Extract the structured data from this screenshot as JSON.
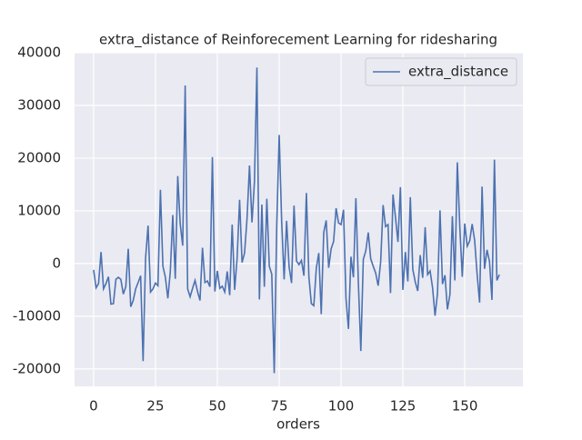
{
  "chart_data": {
    "type": "line",
    "title": "extra_distance of Reinforecement Learning for ridesharing",
    "xlabel": "orders",
    "x": [
      0,
      1,
      2,
      3,
      4,
      5,
      6,
      7,
      8,
      9,
      10,
      11,
      12,
      13,
      14,
      15,
      16,
      17,
      18,
      19,
      20,
      21,
      22,
      23,
      24,
      25,
      26,
      27,
      28,
      29,
      30,
      31,
      32,
      33,
      34,
      35,
      36,
      37,
      38,
      39,
      40,
      41,
      42,
      43,
      44,
      45,
      46,
      47,
      48,
      49,
      50,
      51,
      52,
      53,
      54,
      55,
      56,
      57,
      58,
      59,
      60,
      61,
      62,
      63,
      64,
      65,
      66,
      67,
      68,
      69,
      70,
      71,
      72,
      73,
      74,
      75,
      76,
      77,
      78,
      79,
      80,
      81,
      82,
      83,
      84,
      85,
      86,
      87,
      88,
      89,
      90,
      91,
      92,
      93,
      94,
      95,
      96,
      97,
      98,
      99,
      100,
      101,
      102,
      103,
      104,
      105,
      106,
      107,
      108,
      109,
      110,
      111,
      112,
      113,
      114,
      115,
      116,
      117,
      118,
      119,
      120,
      121,
      122,
      123,
      124,
      125,
      126,
      127,
      128,
      129,
      130,
      131,
      132,
      133,
      134,
      135,
      136,
      137,
      138,
      139,
      140,
      141,
      142,
      143,
      144,
      145,
      146,
      147,
      148,
      149,
      150,
      151,
      152,
      153,
      154,
      155,
      156,
      157,
      158,
      159,
      160,
      161,
      162,
      163,
      164
    ],
    "series": [
      {
        "name": "extra_distance",
        "color": "#4c72b0",
        "values": [
          -1200,
          -4600,
          -3800,
          2200,
          -4800,
          -3800,
          -2500,
          -7700,
          -7600,
          -3000,
          -2600,
          -3000,
          -5800,
          -4400,
          2800,
          -8200,
          -7000,
          -4800,
          -3600,
          -2300,
          -18500,
          1000,
          7200,
          -5400,
          -4800,
          -3700,
          -4200,
          14000,
          -500,
          -2600,
          -6600,
          -1500,
          9200,
          -2900,
          16600,
          7500,
          3400,
          33800,
          -4800,
          -6300,
          -4700,
          -3200,
          -5300,
          -7000,
          3000,
          -3600,
          -3300,
          -4400,
          20200,
          -5300,
          -1400,
          -4700,
          -4300,
          -5400,
          -1500,
          -6000,
          7400,
          -5000,
          1000,
          12100,
          200,
          2000,
          8500,
          18600,
          7800,
          15500,
          37200,
          -6800,
          11200,
          -4400,
          12300,
          -500,
          -2000,
          -20800,
          7000,
          24400,
          8000,
          -3000,
          8100,
          -600,
          -3700,
          11000,
          500,
          -200,
          600,
          -2300,
          13400,
          -2500,
          -7600,
          -8000,
          -900,
          2000,
          -9600,
          5900,
          8200,
          -800,
          2800,
          4200,
          10500,
          7700,
          7400,
          10200,
          -6600,
          -12400,
          1300,
          -2600,
          12400,
          -3600,
          -16600,
          800,
          2400,
          5900,
          900,
          -500,
          -1800,
          -4200,
          200,
          11100,
          7000,
          7400,
          -5600,
          13100,
          8800,
          4100,
          14500,
          -5000,
          2200,
          -3400,
          12600,
          -1100,
          -3500,
          -5200,
          1600,
          -2700,
          6900,
          -2100,
          -1400,
          -4600,
          -9900,
          -5600,
          10100,
          -3900,
          -2200,
          -8700,
          -5900,
          9000,
          -3200,
          19200,
          7000,
          -2500,
          7600,
          3300,
          4300,
          7500,
          4400,
          -2000,
          -7400,
          14600,
          -1000,
          2600,
          400,
          -6900,
          19700,
          -3200,
          -2100
        ]
      }
    ],
    "xlim": [
      -7.7,
      173.5
    ],
    "ylim": [
      -23300,
      40000
    ],
    "xticks": [
      0,
      25,
      50,
      75,
      100,
      125,
      150
    ],
    "yticks": [
      -20000,
      -10000,
      0,
      10000,
      20000,
      30000,
      40000
    ],
    "grid": true,
    "legend": "upper right"
  }
}
